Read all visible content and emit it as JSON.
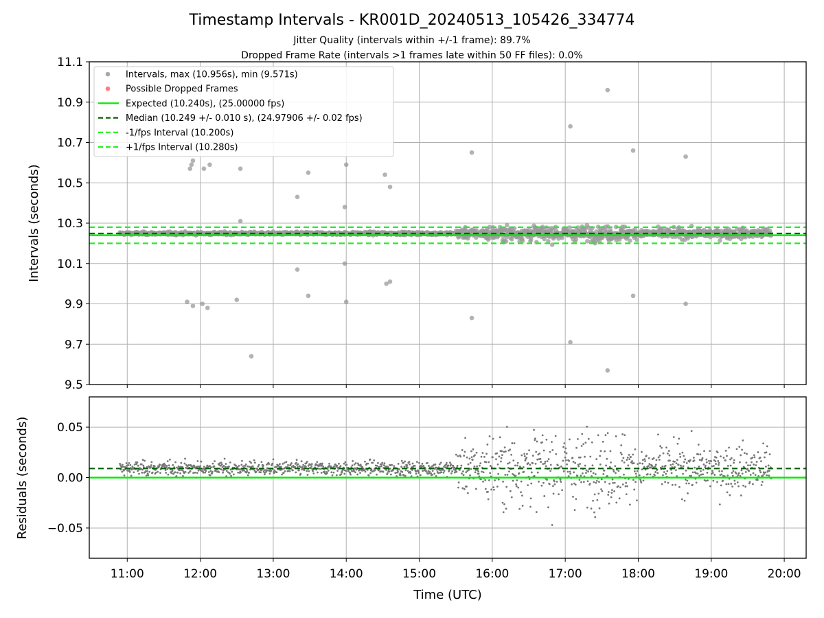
{
  "chart_data": [
    {
      "type": "scatter",
      "panel": "intervals",
      "title": "Timestamp Intervals - KR001D_20240513_105426_334774",
      "subtitle_lines": [
        "Jitter Quality (intervals within +/-1 frame): 89.7%",
        "Dropped Frame Rate (intervals >1 frames late within 50 FF files): 0.0%"
      ],
      "ylabel": "Intervals (seconds)",
      "ylim": [
        9.5,
        11.1
      ],
      "yticks": [
        "9.5",
        "9.7",
        "9.9",
        "10.1",
        "10.3",
        "10.5",
        "10.7",
        "10.9",
        "11.1"
      ],
      "ytick_values": [
        9.5,
        9.7,
        9.9,
        10.1,
        10.3,
        10.5,
        10.7,
        10.9,
        11.1
      ],
      "grid": true,
      "legend_position": "top-left",
      "legend": [
        {
          "label": "Intervals, max (10.956s), min (9.571s)",
          "kind": "marker",
          "color": "#a0a0a0"
        },
        {
          "label": "Possible Dropped Frames",
          "kind": "marker",
          "color": "#ff7070"
        },
        {
          "label": "Expected (10.240s), (25.00000 fps)",
          "kind": "solid",
          "color": "#00ee00"
        },
        {
          "label": "Median (10.249 +/- 0.010 s), (24.97906 +/- 0.02 fps)",
          "kind": "dashed",
          "color": "#006400"
        },
        {
          "label": "-1/fps Interval (10.200s)",
          "kind": "dashed",
          "color": "#22ee22"
        },
        {
          "label": "+1/fps Interval (10.280s)",
          "kind": "dashed",
          "color": "#22ee22"
        }
      ],
      "hlines": {
        "expected": 10.24,
        "median": 10.249,
        "lower": 10.2,
        "upper": 10.28
      },
      "outliers_x_hours": [
        11.86,
        11.9,
        11.88,
        12.05,
        12.13,
        12.55,
        12.55,
        12.7,
        11.82,
        11.9,
        12.03,
        12.1,
        12.5,
        13.33,
        13.48,
        13.33,
        13.48,
        13.98,
        14.0,
        13.98,
        14.0,
        14.53,
        14.6,
        14.55,
        14.6,
        15.72,
        15.72,
        17.07,
        17.58,
        17.07,
        17.58,
        17.93,
        17.93,
        18.65,
        18.65
      ],
      "outliers_y": [
        10.57,
        10.61,
        10.59,
        10.57,
        10.59,
        10.57,
        10.31,
        9.64,
        9.91,
        9.89,
        9.9,
        9.88,
        9.92,
        10.43,
        10.55,
        10.07,
        9.94,
        10.38,
        10.59,
        10.1,
        9.91,
        10.54,
        10.48,
        10.0,
        10.01,
        10.65,
        9.83,
        10.78,
        10.96,
        9.71,
        9.57,
        10.66,
        9.94,
        10.63,
        9.9
      ]
    },
    {
      "type": "scatter",
      "panel": "residuals",
      "xlabel": "Time (UTC)",
      "ylabel": "Residuals (seconds)",
      "ylim": [
        -0.08,
        0.08
      ],
      "yticks": [
        "−0.05",
        "0.00",
        "0.05"
      ],
      "ytick_values": [
        -0.05,
        0.0,
        0.05
      ],
      "xlim_hours": [
        10.48,
        20.3
      ],
      "xticks": [
        "11:00",
        "12:00",
        "13:00",
        "14:00",
        "15:00",
        "16:00",
        "17:00",
        "18:00",
        "19:00",
        "20:00"
      ],
      "xtick_values_hours": [
        11,
        12,
        13,
        14,
        15,
        16,
        17,
        18,
        19,
        20
      ],
      "data_range_hours": [
        10.9,
        19.82
      ],
      "hlines": {
        "zero": 0.0,
        "median_offset": 0.009
      },
      "grid": true
    }
  ],
  "colors": {
    "points": "#999999",
    "residual_points": "#777777",
    "expected": "#00ee00",
    "median": "#006400",
    "bounds": "#22ee22"
  }
}
